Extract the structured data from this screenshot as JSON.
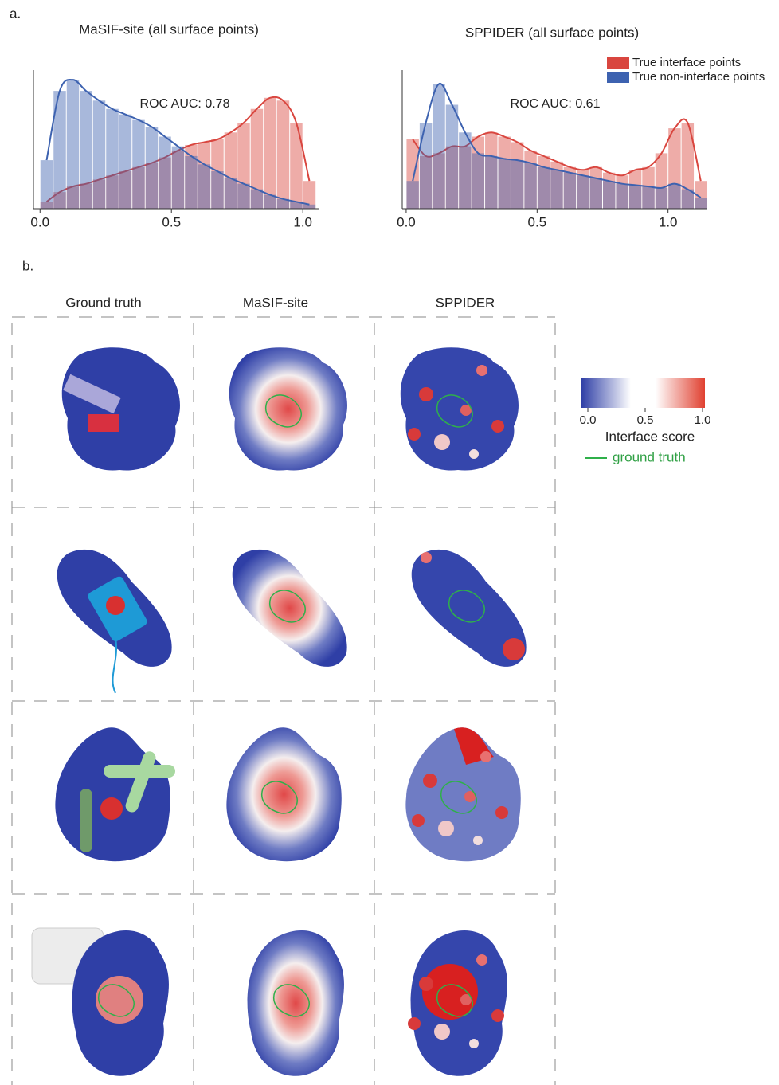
{
  "panel_a_label": "a.",
  "chart_data": [
    {
      "type": "histogram",
      "title": "MaSIF-site (all surface points)",
      "annotation": "ROC AUC: 0.78",
      "bins": [
        0,
        0.05,
        0.1,
        0.15,
        0.2,
        0.25,
        0.3,
        0.35,
        0.4,
        0.45,
        0.5,
        0.55,
        0.6,
        0.65,
        0.7,
        0.75,
        0.8,
        0.85,
        0.9,
        0.95,
        1,
        1.05
      ],
      "series": [
        {
          "name": "True interface points",
          "color": "#d9463f",
          "values": [
            5,
            12,
            16,
            18,
            21,
            24,
            27,
            30,
            33,
            37,
            42,
            46,
            48,
            50,
            55,
            62,
            72,
            80,
            78,
            62,
            20
          ]
        },
        {
          "name": "True non-interface points",
          "color": "#3d62b0",
          "values": [
            35,
            85,
            93,
            85,
            78,
            72,
            68,
            64,
            59,
            52,
            45,
            38,
            32,
            27,
            22,
            18,
            14,
            10,
            7,
            5,
            3
          ]
        }
      ],
      "xlim": [
        -0.025,
        1.06
      ],
      "xticks": [
        {
          "value": 0,
          "label": "0.0"
        },
        0.5,
        {
          "value": 1,
          "label": "1.0"
        }
      ],
      "ylim": [
        0,
        100
      ],
      "legend": false
    },
    {
      "type": "histogram",
      "title": "SPPIDER (all surface points)",
      "annotation": "ROC AUC: 0.61",
      "bins": [
        0,
        0.05,
        0.1,
        0.15,
        0.2,
        0.25,
        0.3,
        0.35,
        0.4,
        0.45,
        0.5,
        0.55,
        0.6,
        0.65,
        0.7,
        0.75,
        0.8,
        0.85,
        0.9,
        0.95,
        1,
        1.05,
        1.1,
        1.15
      ],
      "series": [
        {
          "name": "True interface points",
          "color": "#d9463f",
          "values": [
            50,
            38,
            40,
            45,
            45,
            52,
            55,
            52,
            48,
            42,
            38,
            34,
            30,
            28,
            30,
            26,
            24,
            28,
            30,
            40,
            58,
            62,
            20
          ]
        },
        {
          "name": "True non-interface points",
          "color": "#3d62b0",
          "values": [
            20,
            62,
            90,
            75,
            55,
            40,
            38,
            36,
            35,
            33,
            30,
            28,
            26,
            24,
            22,
            20,
            18,
            17,
            16,
            15,
            18,
            14,
            8
          ]
        }
      ],
      "xlim": [
        -0.015,
        1.15
      ],
      "xticks": [
        {
          "value": 0,
          "label": "0.0"
        },
        0.5,
        {
          "value": 1,
          "label": "1.0"
        }
      ],
      "ylim": [
        0,
        100
      ],
      "legend": "upper right"
    }
  ],
  "panel_b": {
    "label": "b.",
    "columns": [
      "Ground truth",
      "MaSIF-site",
      "SPPIDER"
    ],
    "colorbar": {
      "ticks": [
        {
          "value": 0,
          "label": "0.0"
        },
        0.5,
        {
          "value": 1,
          "label": "1.0"
        }
      ],
      "label": "Interface score",
      "ground_truth_label": "ground  truth"
    }
  }
}
